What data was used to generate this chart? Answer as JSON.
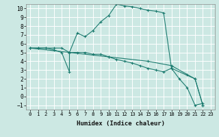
{
  "xlabel": "Humidex (Indice chaleur)",
  "background_color": "#cce8e3",
  "grid_color": "#ffffff",
  "line_color": "#1a7a6e",
  "xlim": [
    -0.5,
    23.5
  ],
  "ylim": [
    -1.5,
    10.5
  ],
  "xticks": [
    0,
    1,
    2,
    3,
    4,
    5,
    6,
    7,
    8,
    9,
    10,
    11,
    12,
    13,
    14,
    15,
    16,
    17,
    18,
    19,
    20,
    21,
    22,
    23
  ],
  "yticks": [
    -1,
    0,
    1,
    2,
    3,
    4,
    5,
    6,
    7,
    8,
    9,
    10
  ],
  "line1_x": [
    0,
    1,
    2,
    3,
    4,
    5,
    6,
    7,
    8,
    9,
    10,
    11,
    12,
    13,
    14,
    15,
    16,
    17,
    18,
    19,
    20,
    21,
    22
  ],
  "line1_y": [
    5.5,
    5.5,
    5.5,
    5.5,
    5.5,
    5.0,
    7.2,
    6.8,
    7.5,
    8.5,
    9.2,
    10.5,
    10.3,
    10.2,
    10.0,
    9.8,
    9.7,
    9.5,
    3.2,
    2.0,
    1.0,
    -1.0,
    -0.8
  ],
  "line2_x": [
    0,
    1,
    2,
    3,
    4,
    5,
    5,
    6,
    7,
    8,
    9,
    10,
    11,
    12,
    13,
    14,
    15,
    16,
    17,
    18,
    21,
    22
  ],
  "line2_y": [
    5.5,
    5.5,
    5.5,
    5.3,
    5.0,
    2.8,
    5.0,
    5.0,
    5.0,
    4.8,
    4.8,
    4.5,
    4.2,
    4.0,
    3.8,
    3.5,
    3.2,
    3.0,
    2.8,
    3.2,
    2.0,
    -1.0
  ],
  "line3_x": [
    0,
    5,
    10,
    15,
    18,
    20,
    21,
    22
  ],
  "line3_y": [
    5.5,
    5.0,
    4.5,
    4.0,
    3.5,
    2.5,
    2.0,
    -1.0
  ]
}
